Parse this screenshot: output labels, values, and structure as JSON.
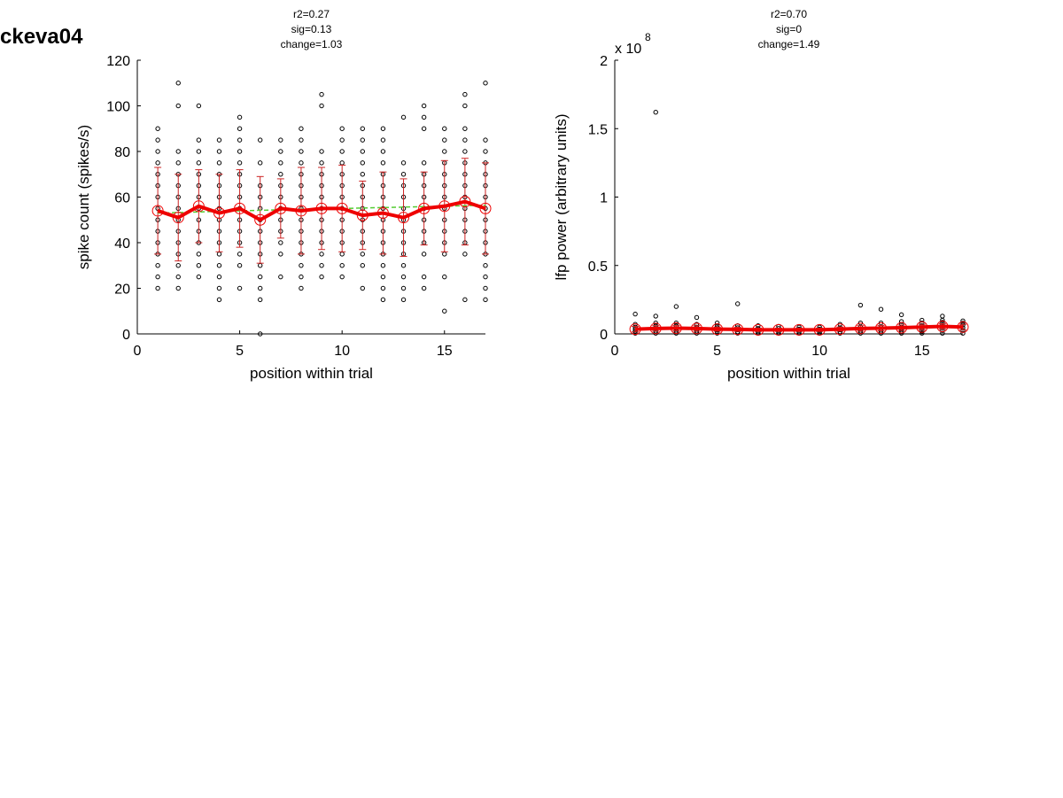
{
  "page": {
    "title": "ckeva04"
  },
  "colors": {
    "mean": "#ee0000",
    "errorbar": "#cc2222",
    "fit": "#55cc33",
    "points": "#000000"
  },
  "chart_data": [
    {
      "type": "scatter",
      "stats": [
        "r2=0.27",
        "sig=0.13",
        "change=1.03"
      ],
      "xlabel": "position within trial",
      "ylabel": "spike count (spikes/s)",
      "exponent_label": "",
      "xlim": [
        0,
        17
      ],
      "ylim": [
        0,
        120
      ],
      "xticks": [
        0,
        5,
        10,
        15
      ],
      "yticks": [
        0,
        20,
        40,
        60,
        80,
        100,
        120
      ],
      "xtick_labels": [
        "0",
        "5",
        "10",
        "15"
      ],
      "ytick_labels": [
        "0",
        "20",
        "40",
        "60",
        "80",
        "100",
        "120"
      ],
      "grid": false,
      "x": [
        1,
        2,
        3,
        4,
        5,
        6,
        7,
        8,
        9,
        10,
        11,
        12,
        13,
        14,
        15,
        16,
        17
      ],
      "mean": [
        54,
        51,
        56,
        53,
        55,
        50,
        55,
        54,
        55,
        55,
        52,
        53,
        51,
        55,
        56,
        58,
        55
      ],
      "sd": [
        19,
        19,
        16,
        17,
        17,
        19,
        13,
        19,
        18,
        19,
        15,
        18,
        17,
        16,
        20,
        19,
        20
      ],
      "fit": [
        53,
        53.2,
        53.5,
        53.7,
        54,
        54.2,
        54.4,
        54.6,
        54.8,
        55,
        55.2,
        55.4,
        55.6,
        55.8,
        56,
        56.2,
        56.4
      ],
      "points": [
        [
          20,
          25,
          30,
          35,
          40,
          45,
          50,
          55,
          60,
          65,
          70,
          75,
          80,
          85,
          90
        ],
        [
          20,
          25,
          30,
          35,
          40,
          45,
          50,
          55,
          60,
          65,
          70,
          75,
          80,
          100,
          110
        ],
        [
          25,
          30,
          35,
          40,
          45,
          50,
          55,
          60,
          65,
          70,
          75,
          80,
          85,
          100
        ],
        [
          15,
          20,
          25,
          30,
          35,
          40,
          45,
          50,
          55,
          60,
          65,
          70,
          75,
          80,
          85
        ],
        [
          20,
          30,
          35,
          40,
          45,
          50,
          55,
          60,
          65,
          70,
          75,
          80,
          85,
          90,
          95
        ],
        [
          0,
          15,
          20,
          25,
          30,
          35,
          40,
          45,
          50,
          55,
          60,
          65,
          75,
          85
        ],
        [
          25,
          35,
          40,
          45,
          50,
          55,
          60,
          65,
          70,
          75,
          80,
          85
        ],
        [
          20,
          25,
          30,
          35,
          40,
          45,
          50,
          55,
          60,
          65,
          70,
          75,
          80,
          85,
          90
        ],
        [
          25,
          30,
          35,
          40,
          45,
          50,
          55,
          60,
          65,
          70,
          75,
          80,
          100,
          105
        ],
        [
          25,
          30,
          35,
          40,
          45,
          50,
          55,
          60,
          65,
          70,
          75,
          80,
          85,
          90
        ],
        [
          20,
          30,
          35,
          40,
          45,
          50,
          55,
          60,
          65,
          70,
          75,
          80,
          85,
          90
        ],
        [
          15,
          20,
          25,
          30,
          35,
          40,
          45,
          50,
          55,
          60,
          65,
          70,
          75,
          80,
          85,
          90
        ],
        [
          15,
          20,
          25,
          30,
          35,
          40,
          45,
          50,
          55,
          60,
          65,
          70,
          75,
          95
        ],
        [
          20,
          25,
          35,
          40,
          45,
          50,
          55,
          60,
          65,
          70,
          75,
          90,
          95,
          100
        ],
        [
          10,
          25,
          35,
          40,
          45,
          50,
          55,
          60,
          65,
          70,
          75,
          80,
          85,
          90
        ],
        [
          15,
          35,
          40,
          45,
          50,
          55,
          60,
          65,
          70,
          75,
          80,
          85,
          90,
          100,
          105
        ],
        [
          15,
          20,
          25,
          30,
          35,
          40,
          45,
          50,
          55,
          60,
          65,
          70,
          75,
          80,
          85,
          110
        ]
      ]
    },
    {
      "type": "scatter",
      "stats": [
        "r2=0.70",
        "sig=0",
        "change=1.49"
      ],
      "xlabel": "position within trial",
      "ylabel": "lfp power (arbitrary units)",
      "exponent_label": "x 10",
      "exponent_power": "8",
      "xlim": [
        0,
        17
      ],
      "ylim": [
        0,
        2
      ],
      "xticks": [
        0,
        5,
        10,
        15
      ],
      "yticks": [
        0,
        0.5,
        1,
        1.5,
        2
      ],
      "xtick_labels": [
        "0",
        "5",
        "10",
        "15"
      ],
      "ytick_labels": [
        "0",
        "0.5",
        "1",
        "1.5",
        "2"
      ],
      "grid": false,
      "x": [
        1,
        2,
        3,
        4,
        5,
        6,
        7,
        8,
        9,
        10,
        11,
        12,
        13,
        14,
        15,
        16,
        17
      ],
      "mean": [
        0.035,
        0.04,
        0.042,
        0.04,
        0.035,
        0.033,
        0.03,
        0.03,
        0.03,
        0.03,
        0.035,
        0.04,
        0.042,
        0.045,
        0.05,
        0.055,
        0.05
      ],
      "sd": [
        0.02,
        0.02,
        0.02,
        0.02,
        0.015,
        0.015,
        0.012,
        0.012,
        0.012,
        0.012,
        0.015,
        0.02,
        0.02,
        0.02,
        0.02,
        0.02,
        0.02
      ],
      "fit": [
        0.035,
        0.035,
        0.034,
        0.033,
        0.032,
        0.032,
        0.031,
        0.031,
        0.031,
        0.032,
        0.034,
        0.036,
        0.039,
        0.042,
        0.045,
        0.048,
        0.051
      ],
      "points": [
        [
          0.005,
          0.02,
          0.035,
          0.05,
          0.07,
          0.145
        ],
        [
          0.005,
          0.02,
          0.04,
          0.06,
          0.08,
          0.13,
          1.62
        ],
        [
          0.005,
          0.02,
          0.04,
          0.06,
          0.08,
          0.2
        ],
        [
          0.005,
          0.02,
          0.035,
          0.05,
          0.07,
          0.12
        ],
        [
          0.005,
          0.015,
          0.03,
          0.045,
          0.06,
          0.08
        ],
        [
          0.005,
          0.015,
          0.03,
          0.045,
          0.06,
          0.22
        ],
        [
          0.005,
          0.015,
          0.025,
          0.04,
          0.06
        ],
        [
          0.005,
          0.015,
          0.025,
          0.04,
          0.055
        ],
        [
          0.005,
          0.015,
          0.025,
          0.035,
          0.05
        ],
        [
          0.005,
          0.015,
          0.025,
          0.035,
          0.05
        ],
        [
          0.005,
          0.015,
          0.03,
          0.045,
          0.07
        ],
        [
          0.005,
          0.02,
          0.035,
          0.05,
          0.08,
          0.21
        ],
        [
          0.005,
          0.02,
          0.035,
          0.05,
          0.08,
          0.18
        ],
        [
          0.005,
          0.02,
          0.035,
          0.05,
          0.07,
          0.09,
          0.14
        ],
        [
          0.005,
          0.02,
          0.04,
          0.06,
          0.08,
          0.1
        ],
        [
          0.005,
          0.025,
          0.045,
          0.065,
          0.085,
          0.1,
          0.13
        ],
        [
          0.005,
          0.025,
          0.045,
          0.065,
          0.08,
          0.095
        ]
      ]
    }
  ]
}
